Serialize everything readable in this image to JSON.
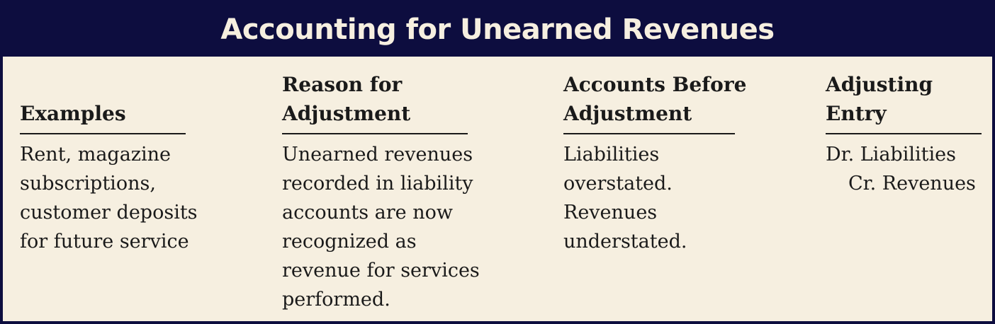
{
  "title": "Accounting for Unearned Revenues",
  "columns": [
    {
      "header": [
        "Examples"
      ],
      "body": [
        "Rent, magazine",
        "subscriptions,",
        "customer deposits",
        "for future service"
      ]
    },
    {
      "header": [
        "Reason for",
        "Adjustment"
      ],
      "body": [
        "Unearned revenues",
        "recorded in liability",
        "accounts are now",
        "recognized as",
        "revenue for services",
        "performed."
      ]
    },
    {
      "header": [
        "Accounts Before",
        "Adjustment"
      ],
      "body": [
        "Liabilities",
        "overstated.",
        "Revenues",
        "understated."
      ]
    },
    {
      "header": [
        "Adjusting",
        "Entry"
      ],
      "body": [
        "Dr. Liabilities",
        "Cr. Revenues"
      ]
    }
  ]
}
